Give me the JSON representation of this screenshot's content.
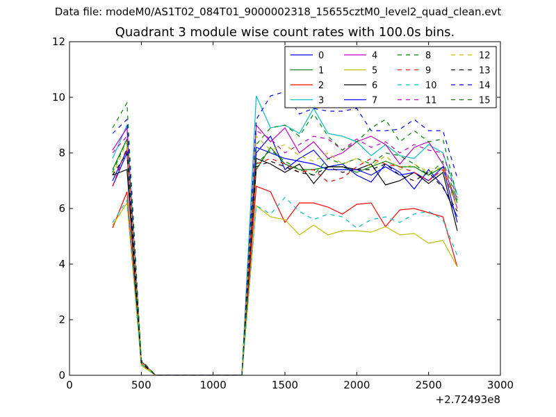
{
  "header": {
    "suptitle": "Data file: modeM0/AS1T02_084T01_9000002318_15655cztM0_level2_quad_clean.evt"
  },
  "chart_data": {
    "type": "line",
    "title": "Quadrant 3 module wise count rates with 100.0s bins.",
    "xlabel": "",
    "ylabel": "",
    "x_offset_label": "+2.72493e8",
    "xlim": [
      0,
      3000
    ],
    "ylim": [
      0,
      12
    ],
    "xticks": [
      0,
      500,
      1000,
      1500,
      2000,
      2500,
      3000
    ],
    "yticks": [
      0,
      2,
      4,
      6,
      8,
      10,
      12
    ],
    "grid": false,
    "legend_position": "top-right",
    "x": [
      300,
      400,
      500,
      600,
      700,
      800,
      900,
      1000,
      1100,
      1200,
      1300,
      1400,
      1500,
      1600,
      1700,
      1800,
      1900,
      2000,
      2100,
      2200,
      2300,
      2400,
      2500,
      2600,
      2700
    ],
    "series": [
      {
        "name": "0",
        "color": "#0000ff",
        "dash": "solid",
        "values": [
          7.0,
          8.1,
          0.45,
          0,
          0,
          0,
          0,
          0,
          0,
          0,
          8.0,
          8.6,
          7.4,
          7.8,
          8.1,
          7.5,
          7.6,
          7.2,
          6.95,
          7.6,
          7.3,
          6.7,
          7.4,
          6.8,
          5.7
        ]
      },
      {
        "name": "1",
        "color": "#008000",
        "dash": "solid",
        "values": [
          7.4,
          8.5,
          0.45,
          0,
          0,
          0,
          0,
          0,
          0,
          0,
          7.4,
          8.2,
          7.6,
          7.4,
          7.4,
          7.5,
          7.5,
          7.3,
          7.5,
          7.7,
          7.5,
          7.5,
          7.2,
          7.5,
          6.2
        ]
      },
      {
        "name": "2",
        "color": "#ff0000",
        "dash": "solid",
        "values": [
          5.3,
          6.6,
          0.4,
          0,
          0,
          0,
          0,
          0,
          0,
          0,
          6.8,
          6.6,
          5.5,
          6.2,
          6.2,
          6.05,
          5.8,
          6.15,
          6.2,
          5.35,
          5.95,
          6.0,
          5.85,
          5.7,
          3.9
        ]
      },
      {
        "name": "3",
        "color": "#00bfbf",
        "dash": "solid",
        "values": [
          7.8,
          9.0,
          0.5,
          0,
          0,
          0,
          0,
          0,
          0,
          0,
          10.05,
          8.9,
          9.0,
          8.7,
          9.6,
          8.7,
          8.6,
          8.4,
          7.9,
          8.3,
          7.9,
          7.8,
          8.3,
          8.0,
          6.5
        ]
      },
      {
        "name": "4",
        "color": "#bf00bf",
        "dash": "solid",
        "values": [
          8.1,
          8.9,
          0.5,
          0,
          0,
          0,
          0,
          0,
          0,
          0,
          9.0,
          8.4,
          8.9,
          8.0,
          8.4,
          7.8,
          8.0,
          8.4,
          8.6,
          8.3,
          7.6,
          8.2,
          8.4,
          7.6,
          6.0
        ]
      },
      {
        "name": "5",
        "color": "#bfbf00",
        "dash": "solid",
        "values": [
          5.4,
          6.2,
          0.35,
          0,
          0,
          0,
          0,
          0,
          0,
          0,
          6.1,
          5.7,
          5.6,
          5.05,
          5.4,
          5.05,
          5.2,
          5.2,
          5.15,
          5.35,
          5.05,
          5.1,
          4.75,
          4.85,
          3.9
        ]
      },
      {
        "name": "6",
        "color": "#000000",
        "dash": "solid",
        "values": [
          7.2,
          7.4,
          0.45,
          0,
          0,
          0,
          0,
          0,
          0,
          0,
          7.8,
          7.6,
          7.3,
          7.6,
          6.9,
          7.5,
          7.5,
          7.4,
          7.6,
          6.85,
          7.0,
          7.3,
          6.9,
          7.3,
          5.2
        ]
      },
      {
        "name": "7",
        "color": "#0000ff",
        "dash": "solid",
        "values": [
          6.8,
          8.0,
          0.45,
          0,
          0,
          0,
          0,
          0,
          0,
          0,
          8.2,
          8.0,
          7.8,
          7.7,
          7.6,
          7.4,
          7.4,
          7.4,
          7.2,
          7.5,
          7.2,
          7.3,
          7.0,
          7.5,
          5.5
        ]
      },
      {
        "name": "8",
        "color": "#008000",
        "dash": "dashed",
        "values": [
          7.3,
          8.5,
          0.5,
          0,
          0,
          0,
          0,
          0,
          0,
          0,
          7.6,
          8.1,
          7.7,
          7.4,
          7.2,
          7.8,
          7.6,
          7.8,
          7.6,
          8.0,
          7.9,
          7.6,
          7.2,
          7.7,
          6.3
        ]
      },
      {
        "name": "9",
        "color": "#ff0000",
        "dash": "dashed",
        "values": [
          6.8,
          8.2,
          0.45,
          0,
          0,
          0,
          0,
          0,
          0,
          0,
          7.6,
          7.8,
          7.6,
          7.3,
          7.4,
          6.95,
          7.1,
          7.5,
          7.8,
          7.6,
          7.5,
          7.3,
          7.0,
          7.4,
          6.0
        ]
      },
      {
        "name": "10",
        "color": "#00bfbf",
        "dash": "dashed",
        "values": [
          5.5,
          6.3,
          0.4,
          0,
          0,
          0,
          0,
          0,
          0,
          0,
          6.1,
          5.8,
          6.4,
          5.9,
          5.6,
          5.8,
          5.7,
          5.3,
          5.6,
          5.7,
          5.5,
          5.8,
          5.9,
          5.6,
          4.3
        ]
      },
      {
        "name": "11",
        "color": "#bf00bf",
        "dash": "dashed",
        "values": [
          8.0,
          8.6,
          0.5,
          0,
          0,
          0,
          0,
          0,
          0,
          0,
          8.8,
          8.5,
          8.0,
          8.3,
          8.6,
          8.5,
          8.1,
          8.5,
          8.2,
          8.4,
          8.0,
          8.3,
          8.1,
          8.0,
          6.3
        ]
      },
      {
        "name": "12",
        "color": "#bfbf00",
        "dash": "dashed",
        "values": [
          7.2,
          8.4,
          0.45,
          0,
          0,
          0,
          0,
          0,
          0,
          0,
          8.6,
          8.1,
          8.3,
          7.9,
          7.7,
          8.0,
          7.6,
          7.8,
          7.5,
          7.9,
          7.4,
          7.6,
          7.3,
          7.5,
          6.0
        ]
      },
      {
        "name": "13",
        "color": "#000000",
        "dash": "dashed",
        "values": [
          7.2,
          8.0,
          0.45,
          0,
          0,
          0,
          0,
          0,
          0,
          0,
          7.5,
          7.7,
          7.5,
          7.3,
          7.2,
          7.5,
          7.3,
          7.4,
          7.4,
          7.6,
          7.2,
          7.0,
          7.3,
          6.75,
          5.9
        ]
      },
      {
        "name": "14",
        "color": "#0000ff",
        "dash": "dashed",
        "values": [
          8.7,
          9.2,
          0.55,
          0,
          0,
          0,
          0,
          0,
          0,
          0,
          9.2,
          10.05,
          10.2,
          9.4,
          9.6,
          9.5,
          9.5,
          9.6,
          8.8,
          8.8,
          8.85,
          9.2,
          8.8,
          8.8,
          7.1
        ]
      },
      {
        "name": "15",
        "color": "#008000",
        "dash": "dashed",
        "values": [
          8.9,
          9.8,
          0.55,
          0,
          0,
          0,
          0,
          0,
          0,
          0,
          8.3,
          8.9,
          9.0,
          8.6,
          9.4,
          8.6,
          8.1,
          8.4,
          8.9,
          9.2,
          8.4,
          8.8,
          8.4,
          8.5,
          6.4
        ]
      }
    ]
  }
}
